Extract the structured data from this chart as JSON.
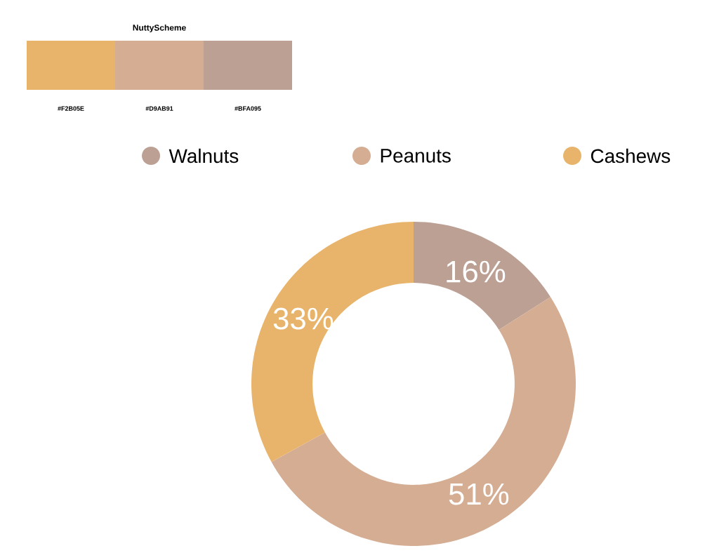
{
  "chart_data": [
    {
      "type": "other",
      "title": "NuttyScheme",
      "categories": [
        "#F2B05E",
        "#D9AB91",
        "#BFA095"
      ],
      "colors": [
        "#E8B46B",
        "#D4AD93",
        "#BCA094"
      ]
    },
    {
      "type": "donut",
      "categories": [
        "Walnuts",
        "Peanuts",
        "Cashews"
      ],
      "values": [
        16,
        51,
        33
      ],
      "colors": [
        "#BCA094",
        "#D4AD93",
        "#E8B46B"
      ],
      "value_labels": [
        "16%",
        "51%",
        "33%"
      ],
      "legend": "top"
    }
  ]
}
